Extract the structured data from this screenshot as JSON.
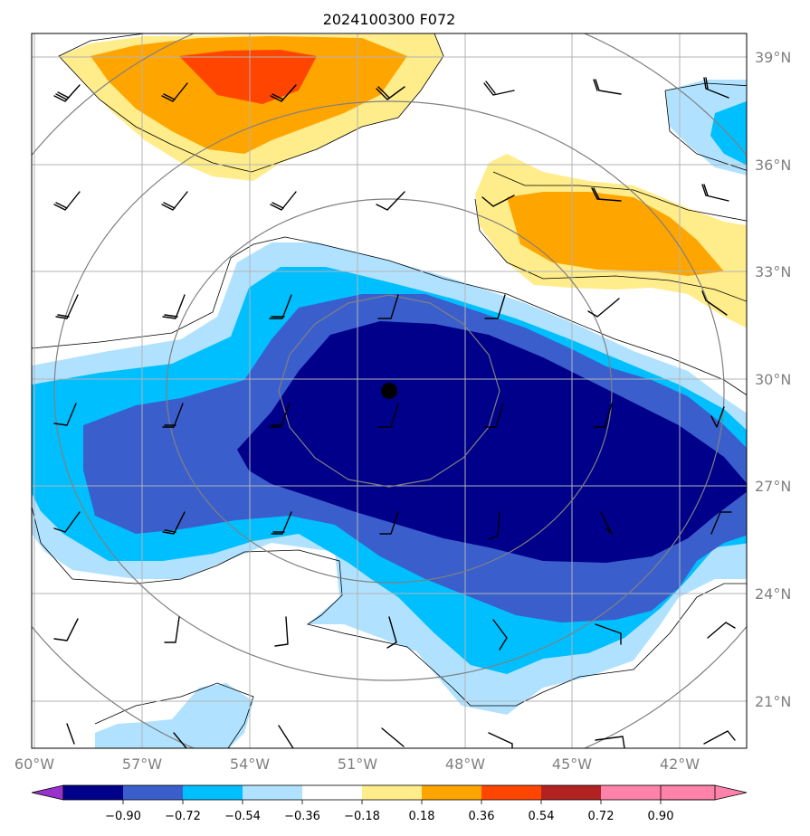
{
  "title": "2024100300 F072",
  "lat_labels": [
    "39°N",
    "36°N",
    "33°N",
    "30°N",
    "27°N",
    "24°N",
    "21°N"
  ],
  "lon_labels": [
    "60°W",
    "57°W",
    "54°W",
    "51°W",
    "48°W",
    "45°W",
    "42°W"
  ],
  "colorbar": {
    "levels": [
      "−0.90",
      "−0.72",
      "−0.54",
      "−0.36",
      "−0.18",
      "0.18",
      "0.36",
      "0.54",
      "0.72",
      "0.90"
    ],
    "colors": [
      "#9932cc",
      "#00008b",
      "#3a5fcd",
      "#00bfff",
      "#b0e2ff",
      "#ffffff",
      "#ffec8b",
      "#ffa500",
      "#ff4500",
      "#b22222",
      "#ff82ab"
    ]
  },
  "colors": {
    "level_neg_090": "#00008b",
    "level_neg_072": "#3a5fcd",
    "level_neg_054": "#00bfff",
    "level_neg_036": "#b0e2ff",
    "level_pos_018": "#ffec8b",
    "level_pos_036": "#ffa500",
    "level_pos_054": "#ff4500",
    "grid": "#b3b3b3",
    "range_rings": "#808080",
    "center_marker": "#000000"
  },
  "map": {
    "center_marker": "storm-center-dot",
    "range_rings": 4,
    "wind_barbs": true
  }
}
